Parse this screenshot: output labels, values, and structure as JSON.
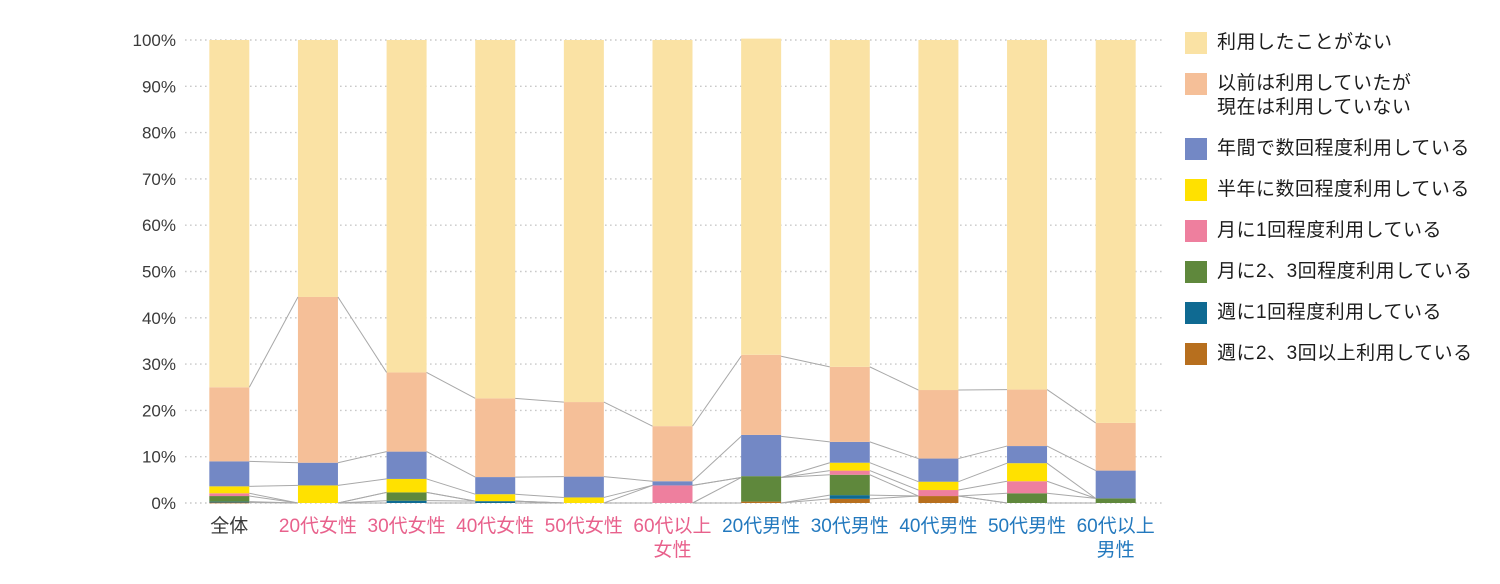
{
  "chart_data": {
    "type": "bar",
    "variant": "stacked-100-percent",
    "title": "",
    "xlabel": "",
    "ylabel": "",
    "unit": "%",
    "ylim": [
      0,
      100
    ],
    "ytick_step": 10,
    "yticks": [
      "0%",
      "10%",
      "20%",
      "30%",
      "40%",
      "50%",
      "60%",
      "70%",
      "80%",
      "90%",
      "100%"
    ],
    "grid": "dotted-horizontal",
    "legend_position": "right",
    "connector_lines": true,
    "categories": [
      "全体",
      "20代女性",
      "30代女性",
      "40代女性",
      "50代女性",
      "60代以上\n女性",
      "20代男性",
      "30代男性",
      "40代男性",
      "50代男性",
      "60代以上\n男性"
    ],
    "category_colors": [
      "#3a3a3a",
      "#e8618c",
      "#e8618c",
      "#e8618c",
      "#e8618c",
      "#e8618c",
      "#2379be",
      "#2379be",
      "#2379be",
      "#2379be",
      "#2379be"
    ],
    "series": [
      {
        "name": "利用したことがない",
        "color": "#fae2a4",
        "values": [
          75.0,
          55.5,
          71.8,
          77.4,
          78.2,
          83.4,
          68.3,
          70.6,
          75.6,
          75.5,
          82.7
        ]
      },
      {
        "name": "以前は利用していたが\n現在は利用していない",
        "color": "#f5bf98",
        "values": [
          16.0,
          35.8,
          17.1,
          17.0,
          16.1,
          11.9,
          17.3,
          16.2,
          14.8,
          12.2,
          10.3
        ]
      },
      {
        "name": "年間で数回程度利用している",
        "color": "#7388c5",
        "values": [
          5.4,
          4.9,
          5.9,
          3.7,
          4.5,
          0.9,
          8.9,
          4.5,
          5.0,
          3.7,
          6.0
        ]
      },
      {
        "name": "半年に数回程度利用している",
        "color": "#ffe100",
        "values": [
          1.5,
          3.8,
          2.9,
          1.5,
          1.2,
          0,
          0,
          1.7,
          1.8,
          3.9,
          0
        ]
      },
      {
        "name": "月に1回程度利用している",
        "color": "#ee7f9e",
        "values": [
          0.6,
          0,
          0,
          0,
          0,
          3.8,
          0,
          0.9,
          1.3,
          2.6,
          0
        ]
      },
      {
        "name": "月に2、3回程度利用している",
        "color": "#5f883c",
        "values": [
          1.2,
          0,
          1.8,
          0,
          0,
          0,
          5.5,
          4.4,
          0,
          2.1,
          1.0
        ]
      },
      {
        "name": "週に1回程度利用している",
        "color": "#0f6a92",
        "values": [
          0.2,
          0,
          0.5,
          0.4,
          0,
          0,
          0,
          0.8,
          0,
          0,
          0
        ]
      },
      {
        "name": "週に2、3回以上利用している",
        "color": "#b76f1e",
        "values": [
          0.1,
          0,
          0,
          0,
          0,
          0,
          0.3,
          0.9,
          1.5,
          0,
          0
        ]
      }
    ],
    "style": {
      "gridline_color": "#c9c9c9",
      "connector_color": "#a8a8a8",
      "ytick_color": "#3a3a3a",
      "background": "#ffffff"
    }
  }
}
